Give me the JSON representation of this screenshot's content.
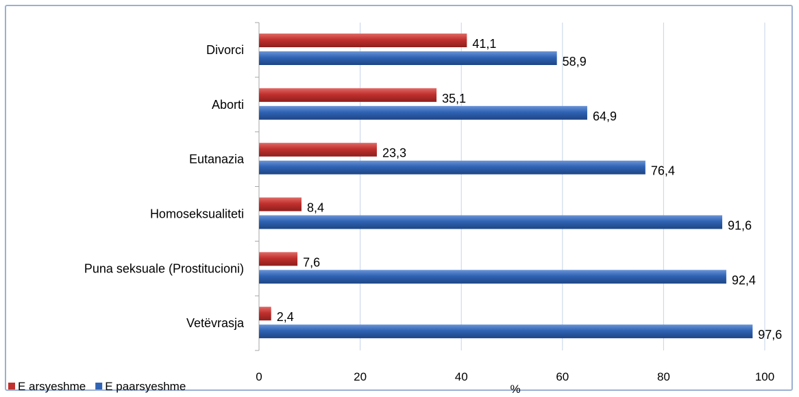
{
  "chart_data": {
    "type": "bar",
    "orientation": "horizontal",
    "categories": [
      "Divorci",
      "Aborti",
      "Eutanazia",
      "Homoseksualiteti",
      "Puna seksuale (Prostitucioni)",
      "Vetëvrasja"
    ],
    "series": [
      {
        "name": "E arsyeshme",
        "color": "#c0302e",
        "values": [
          41.1,
          35.1,
          23.3,
          8.4,
          7.6,
          2.4
        ],
        "labels": [
          "41,1",
          "35,1",
          "23,3",
          "8,4",
          "7,6",
          "2,4"
        ]
      },
      {
        "name": "E paarsyeshme",
        "color": "#2f63b4",
        "values": [
          58.9,
          64.9,
          76.4,
          91.6,
          92.4,
          97.6
        ],
        "labels": [
          "58,9",
          "64,9",
          "76,4",
          "91,6",
          "92,4",
          "97,6"
        ]
      }
    ],
    "xlabel": "%",
    "ylabel": "",
    "xlim": [
      0,
      100
    ],
    "xticks": [
      0,
      20,
      40,
      60,
      80,
      100
    ],
    "grid": true,
    "legend_position": "bottom-left"
  }
}
